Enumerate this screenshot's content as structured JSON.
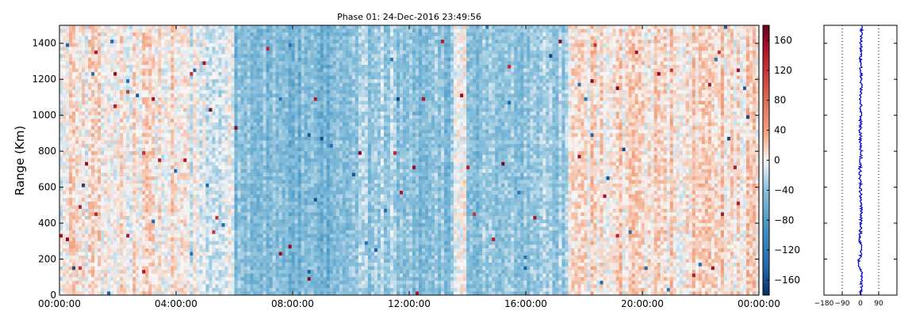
{
  "chart_data": [
    {
      "type": "heatmap",
      "title": "Phase 01: 24-Dec-2016 23:49:56",
      "ylabel": "Range (Km)",
      "xlim": [
        "00:00:00",
        "24:00:00"
      ],
      "ylim": [
        0,
        1500
      ],
      "x_ticks": [
        "00:00:00",
        "04:00:00",
        "08:00:00",
        "12:00:00",
        "16:00:00",
        "20:00:00",
        "00:00:00"
      ],
      "x_tick_hours": [
        0,
        4,
        8,
        12,
        16,
        20,
        24
      ],
      "y_ticks": [
        0,
        200,
        400,
        600,
        800,
        1000,
        1200,
        1400
      ],
      "colormap": "RdBu_r",
      "grid": false,
      "colorbar": {
        "range": [
          -180,
          180
        ],
        "ticks": [
          160,
          120,
          80,
          40,
          0,
          -40,
          -80,
          -120,
          -160
        ]
      },
      "column_mean_phase": [
        {
          "hours": [
            0,
            4
          ],
          "value": 5
        },
        {
          "hours": [
            4,
            6
          ],
          "value": -5
        },
        {
          "hours": [
            6,
            8
          ],
          "value": -45
        },
        {
          "hours": [
            8,
            10
          ],
          "value": -50
        },
        {
          "hours": [
            10,
            12
          ],
          "value": -35
        },
        {
          "hours": [
            12,
            13.5
          ],
          "value": -45
        },
        {
          "hours": [
            14,
            16
          ],
          "value": -40
        },
        {
          "hours": [
            16,
            17.5
          ],
          "value": -30
        },
        {
          "hours": [
            17.5,
            20
          ],
          "value": 10
        },
        {
          "hours": [
            20,
            24
          ],
          "value": 12
        }
      ]
    },
    {
      "type": "line",
      "xlim": [
        -180,
        180
      ],
      "ylim": [
        0,
        1500
      ],
      "x_ticks": [
        "−180",
        "−90",
        "0",
        "90"
      ],
      "x_tick_values": [
        -180,
        -90,
        0,
        90
      ],
      "reference_lines_x": [
        -90,
        90
      ],
      "series": [
        {
          "color": "#0000cc",
          "profile": [
            {
              "y": 0,
              "x": 0
            },
            {
              "y": 60,
              "x": 5
            },
            {
              "y": 120,
              "x": 8
            },
            {
              "y": 180,
              "x": -10
            },
            {
              "y": 240,
              "x": 5
            },
            {
              "y": 300,
              "x": -3
            },
            {
              "y": 400,
              "x": 2
            },
            {
              "y": 500,
              "x": 4
            },
            {
              "y": 540,
              "x": 0
            },
            {
              "y": 600,
              "x": 1
            },
            {
              "y": 700,
              "x": -2
            },
            {
              "y": 800,
              "x": 3
            },
            {
              "y": 900,
              "x": -1
            },
            {
              "y": 1000,
              "x": 2
            },
            {
              "y": 1100,
              "x": 0
            },
            {
              "y": 1200,
              "x": 4
            },
            {
              "y": 1300,
              "x": 1
            },
            {
              "y": 1400,
              "x": 3
            },
            {
              "y": 1500,
              "x": 6
            }
          ]
        }
      ]
    }
  ]
}
